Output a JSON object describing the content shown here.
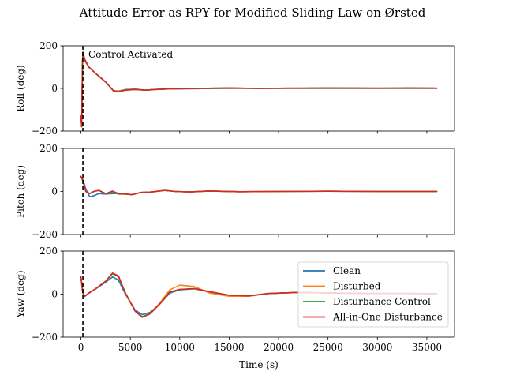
{
  "figure": {
    "title": "Attitude Error as RPY for Modified Sliding Law on Ørsted"
  },
  "chart_data": {
    "type": "line",
    "title": "Attitude Error as RPY for Modified Sliding Law on Ørsted",
    "xlabel": "Time (s)",
    "xlim": [
      -1800,
      37800
    ],
    "xticks": [
      0,
      5000,
      10000,
      15000,
      20000,
      25000,
      30000,
      35000
    ],
    "xtick_labels": [
      "0",
      "5000",
      "10000",
      "15000",
      "20000",
      "25000",
      "30000",
      "35000"
    ],
    "control_activation_time": 200,
    "annotation": "Control Activated",
    "legend": {
      "placement": "lower-right of yaw panel",
      "entries": [
        "Clean",
        "Disturbed",
        "Disturbance Control",
        "All-in-One Disturbance"
      ]
    },
    "series_colors": {
      "Clean": "#1f77b4",
      "Disturbed": "#ff7f0e",
      "Disturbance Control": "#2ca02c",
      "All-in-One Disturbance": "#d62728"
    },
    "panels": [
      {
        "name": "roll",
        "ylabel": "Roll (deg)",
        "ylim": [
          -200,
          200
        ],
        "yticks": [
          -200,
          0,
          200
        ],
        "ytick_labels": [
          "−200",
          "0",
          "200"
        ],
        "series": [
          {
            "name": "Clean",
            "x": [
              0,
              80,
              160,
              200,
              400,
              800,
              1500,
              2500,
              3300,
              3800,
              4500,
              5500,
              6500,
              7500,
              9000,
              12000,
              15000,
              18000,
              21000,
              25000,
              30000,
              33000,
              36000
            ],
            "y": [
              -130,
              -180,
              120,
              170,
              130,
              100,
              70,
              30,
              -10,
              -12,
              -5,
              -3,
              -8,
              -5,
              -2,
              -1,
              0,
              0,
              0,
              0,
              0,
              0,
              0
            ]
          },
          {
            "name": "Disturbed",
            "x": [
              0,
              80,
              160,
              200,
              400,
              800,
              1500,
              2500,
              3300,
              3800,
              4500,
              5500,
              6500,
              7500,
              9000,
              12000,
              15000,
              18000,
              21000,
              25000,
              30000,
              33000,
              36000
            ],
            "y": [
              -130,
              -180,
              120,
              170,
              135,
              100,
              70,
              30,
              -10,
              -14,
              -6,
              -4,
              -8,
              -5,
              -2,
              0,
              2,
              0,
              1,
              2,
              1,
              2,
              1
            ]
          },
          {
            "name": "Disturbance Control",
            "x": [
              0,
              80,
              160,
              200,
              400,
              800,
              1500,
              2500,
              3300,
              3800,
              4500,
              5500,
              6500,
              7500,
              9000,
              12000,
              15000,
              18000,
              21000,
              25000,
              30000,
              33000,
              36000
            ],
            "y": [
              -130,
              -180,
              120,
              170,
              135,
              100,
              70,
              30,
              -12,
              -16,
              -8,
              -5,
              -8,
              -5,
              -2,
              0,
              2,
              0,
              1,
              2,
              1,
              2,
              1
            ]
          },
          {
            "name": "All-in-One Disturbance",
            "x": [
              0,
              80,
              160,
              200,
              400,
              800,
              1500,
              2500,
              3300,
              3800,
              4500,
              5500,
              6500,
              7500,
              9000,
              12000,
              15000,
              18000,
              21000,
              25000,
              30000,
              33000,
              36000
            ],
            "y": [
              -130,
              -180,
              120,
              170,
              135,
              100,
              70,
              30,
              -12,
              -16,
              -8,
              -5,
              -8,
              -5,
              -2,
              0,
              2,
              0,
              1,
              2,
              1,
              2,
              1
            ]
          }
        ]
      },
      {
        "name": "pitch",
        "ylabel": "Pitch (deg)",
        "ylim": [
          -200,
          200
        ],
        "yticks": [
          -200,
          0,
          200
        ],
        "ytick_labels": [
          "−200",
          "0",
          "200"
        ],
        "series": [
          {
            "name": "Clean",
            "x": [
              0,
              200,
              500,
              900,
              1300,
              1800,
              2500,
              3200,
              3800,
              4500,
              5200,
              6000,
              7000,
              8500,
              9500,
              11000,
              13000,
              16000,
              20000,
              25000,
              30000,
              36000
            ],
            "y": [
              70,
              55,
              10,
              -25,
              -20,
              -10,
              -12,
              -10,
              -10,
              -12,
              -15,
              -5,
              -3,
              5,
              0,
              -2,
              2,
              -1,
              0,
              1,
              0,
              0
            ]
          },
          {
            "name": "Disturbed",
            "x": [
              0,
              200,
              500,
              900,
              1300,
              1800,
              2500,
              3200,
              3800,
              4500,
              5200,
              6000,
              7000,
              8500,
              9500,
              11000,
              13000,
              16000,
              20000,
              25000,
              30000,
              36000
            ],
            "y": [
              70,
              50,
              0,
              -10,
              0,
              5,
              -10,
              -5,
              -12,
              -12,
              -15,
              -5,
              -3,
              5,
              0,
              -2,
              2,
              -1,
              0,
              1,
              0,
              0
            ]
          },
          {
            "name": "Disturbance Control",
            "x": [
              0,
              200,
              500,
              900,
              1300,
              1800,
              2500,
              3200,
              3800,
              4500,
              5200,
              6000,
              7000,
              8500,
              9500,
              11000,
              13000,
              16000,
              20000,
              25000,
              30000,
              36000
            ],
            "y": [
              70,
              50,
              0,
              -10,
              0,
              5,
              -10,
              -5,
              -12,
              -12,
              -15,
              -5,
              -3,
              5,
              0,
              -2,
              2,
              -1,
              0,
              1,
              0,
              0
            ]
          },
          {
            "name": "All-in-One Disturbance",
            "x": [
              0,
              200,
              500,
              900,
              1300,
              1800,
              2500,
              3200,
              3800,
              4500,
              5200,
              6000,
              7000,
              8500,
              9500,
              11000,
              13000,
              16000,
              20000,
              25000,
              30000,
              36000
            ],
            "y": [
              70,
              50,
              0,
              -10,
              0,
              5,
              -10,
              2,
              -10,
              -12,
              -15,
              -5,
              -3,
              5,
              0,
              -2,
              2,
              -1,
              0,
              1,
              0,
              0
            ]
          }
        ]
      },
      {
        "name": "yaw",
        "ylabel": "Yaw (deg)",
        "ylim": [
          -200,
          200
        ],
        "yticks": [
          -200,
          0,
          200
        ],
        "ytick_labels": [
          "−200",
          "0",
          "200"
        ],
        "series": [
          {
            "name": "Clean",
            "x": [
              0,
              200,
              400,
              800,
              1500,
              2500,
              3200,
              3800,
              4500,
              5500,
              6200,
              7000,
              8000,
              9000,
              10000,
              11500,
              13000,
              15000,
              17000,
              19000,
              22000,
              26000,
              30000,
              33000,
              36000
            ],
            "y": [
              80,
              5,
              -10,
              5,
              25,
              55,
              80,
              65,
              0,
              -75,
              -95,
              -85,
              -45,
              5,
              20,
              25,
              10,
              -5,
              -8,
              3,
              8,
              5,
              3,
              3,
              2
            ]
          },
          {
            "name": "Disturbed",
            "x": [
              0,
              200,
              400,
              800,
              1500,
              2500,
              3200,
              3800,
              4500,
              5500,
              6200,
              7000,
              8000,
              9000,
              10000,
              11500,
              13000,
              15000,
              17000,
              19000,
              22000,
              26000,
              30000,
              33000,
              36000
            ],
            "y": [
              80,
              5,
              -10,
              5,
              25,
              60,
              95,
              80,
              5,
              -80,
              -105,
              -90,
              -40,
              20,
              42,
              35,
              5,
              -10,
              -10,
              3,
              8,
              5,
              3,
              3,
              2
            ]
          },
          {
            "name": "Disturbance Control",
            "x": [
              0,
              200,
              400,
              800,
              1500,
              2500,
              3200,
              3800,
              4500,
              5500,
              6200,
              7000,
              8000,
              9000,
              10000,
              11500,
              13000,
              15000,
              17000,
              19000,
              22000,
              26000,
              30000,
              33000,
              36000
            ],
            "y": [
              80,
              5,
              -10,
              5,
              25,
              60,
              95,
              82,
              5,
              -80,
              -105,
              -90,
              -45,
              10,
              22,
              25,
              12,
              -5,
              -8,
              3,
              8,
              5,
              3,
              3,
              2
            ]
          },
          {
            "name": "All-in-One Disturbance",
            "x": [
              0,
              200,
              400,
              800,
              1500,
              2500,
              3200,
              3800,
              4500,
              5500,
              6200,
              7000,
              8000,
              9000,
              10000,
              11500,
              13000,
              15000,
              17000,
              19000,
              22000,
              26000,
              30000,
              33000,
              36000
            ],
            "y": [
              80,
              5,
              -10,
              5,
              25,
              60,
              98,
              85,
              5,
              -80,
              -108,
              -92,
              -45,
              10,
              22,
              26,
              12,
              -5,
              -8,
              3,
              8,
              5,
              3,
              3,
              2
            ]
          }
        ]
      }
    ]
  }
}
